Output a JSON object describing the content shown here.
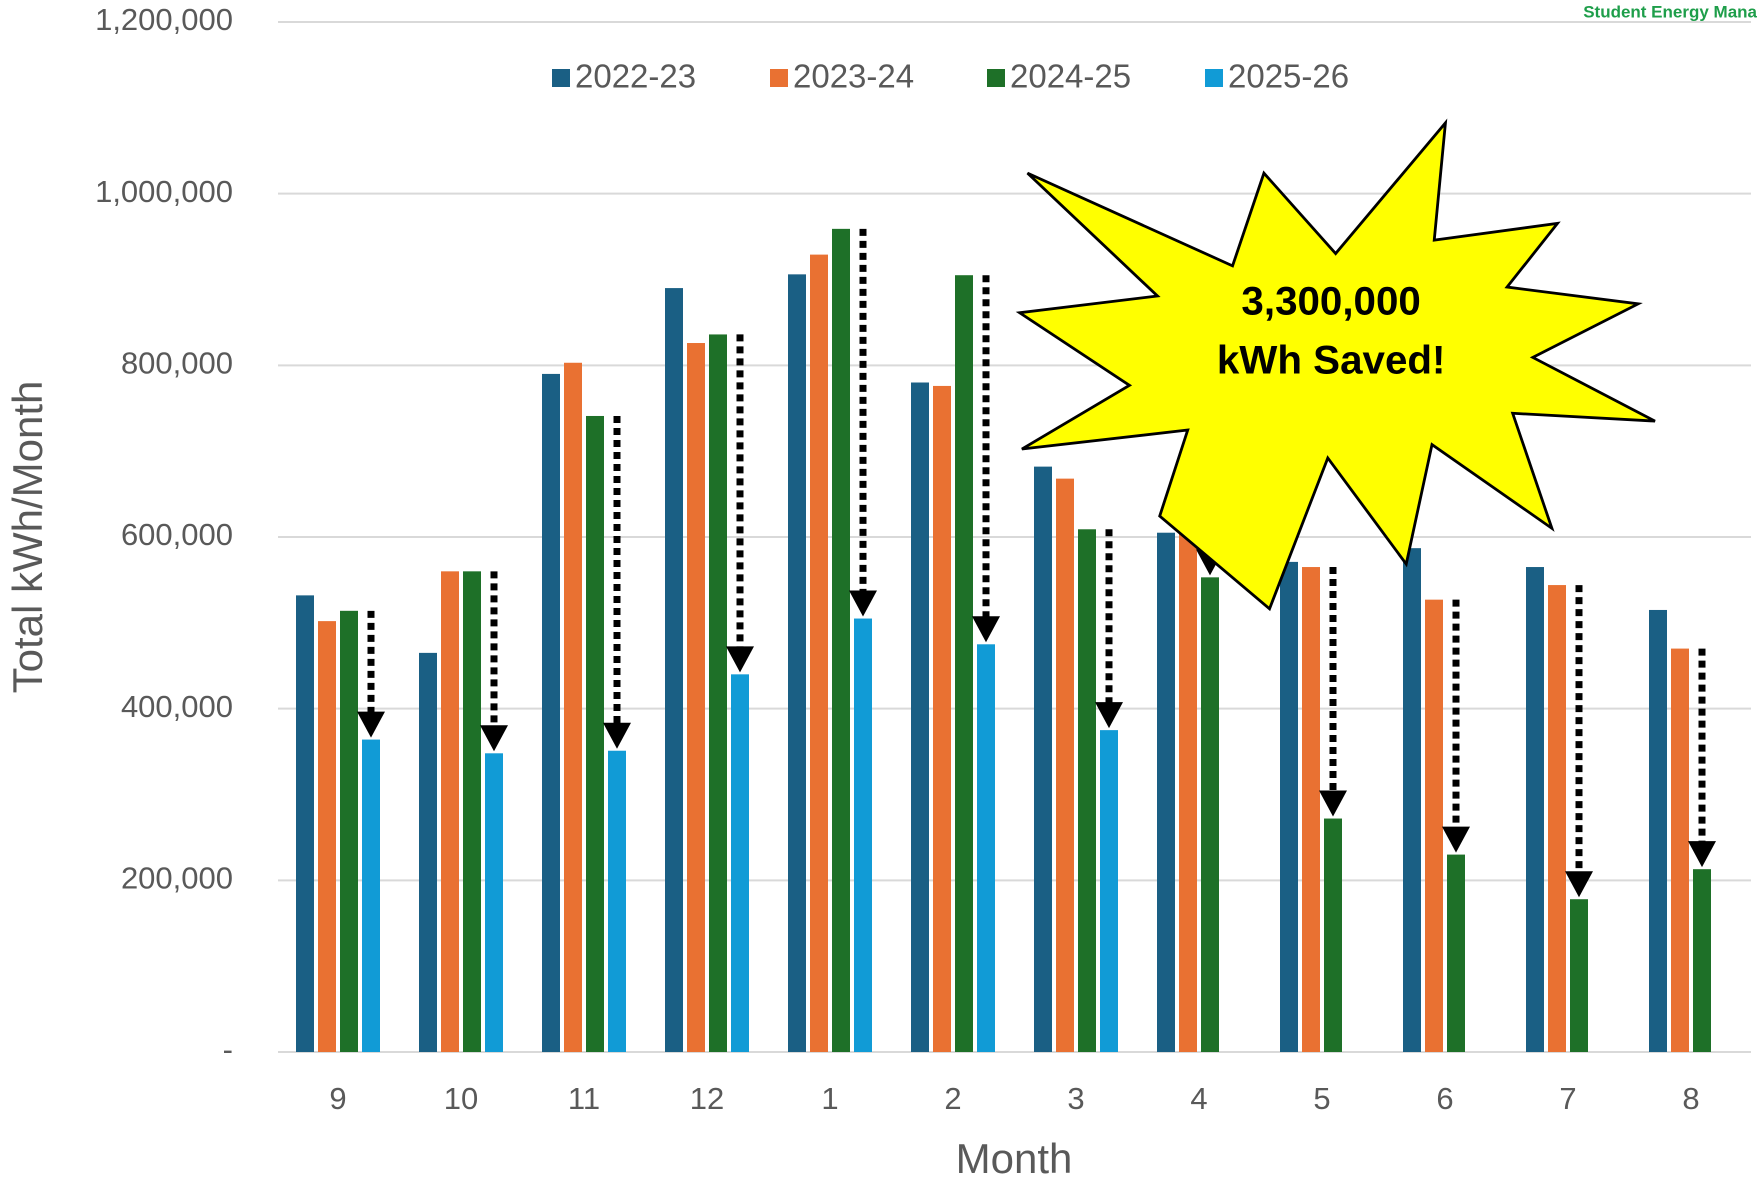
{
  "chart_data": {
    "type": "bar",
    "corner_text": "Student Energy Mana",
    "annotation": [
      "3,300,000",
      "kWh Saved!"
    ],
    "x_label": "Month",
    "y_label": "Total kWh/Month",
    "categories": [
      "9",
      "10",
      "11",
      "12",
      "1",
      "2",
      "3",
      "4",
      "5",
      "6",
      "7",
      "8"
    ],
    "series": [
      {
        "name": "2022-23",
        "color": "#1a5f84",
        "values": [
          532000,
          465000,
          790000,
          890000,
          906000,
          780000,
          682000,
          605000,
          571000,
          587000,
          565000,
          515000
        ]
      },
      {
        "name": "2023-24",
        "color": "#e97132",
        "values": [
          502000,
          560000,
          803000,
          826000,
          929000,
          776000,
          668000,
          634000,
          565000,
          527000,
          544000,
          470000
        ]
      },
      {
        "name": "2024-25",
        "color": "#1e7028",
        "values": [
          514000,
          560000,
          741000,
          836000,
          959000,
          905000,
          609000,
          553000,
          272000,
          230000,
          178000,
          213000
        ]
      },
      {
        "name": "2025-26",
        "color": "#119bd6",
        "values": [
          364000,
          348000,
          351000,
          440000,
          505000,
          475000,
          375000,
          null,
          null,
          null,
          null,
          null
        ]
      }
    ],
    "ylim": [
      0,
      1200000
    ],
    "yticks": [
      {
        "value": 0,
        "label": "-"
      },
      {
        "value": 200000,
        "label": "200,000"
      },
      {
        "value": 400000,
        "label": "400,000"
      },
      {
        "value": 600000,
        "label": "600,000"
      },
      {
        "value": 800000,
        "label": "800,000"
      },
      {
        "value": 1000000,
        "label": "1,000,000"
      },
      {
        "value": 1200000,
        "label": "1,200,000"
      }
    ],
    "grid": true,
    "legend": "top"
  }
}
